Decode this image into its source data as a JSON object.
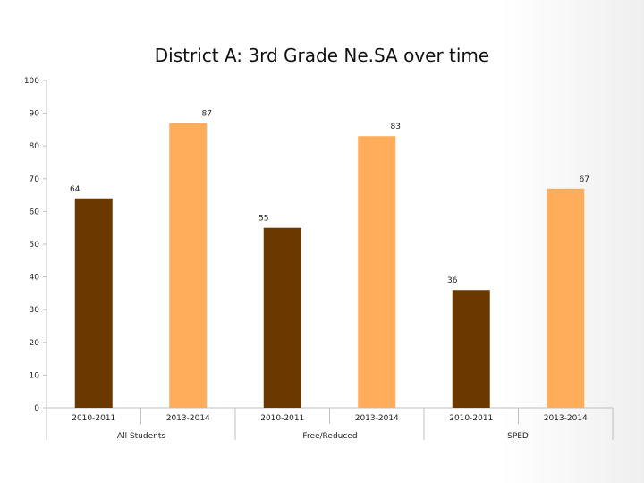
{
  "chart_data": {
    "type": "bar",
    "title": "District A: 3rd Grade Ne.SA over time",
    "ylim": [
      0,
      100
    ],
    "yticks": [
      0,
      10,
      20,
      30,
      40,
      50,
      60,
      70,
      80,
      90,
      100
    ],
    "grid": false,
    "groups": [
      "All Students",
      "Free/Reduced",
      "SPED"
    ],
    "categories": [
      "2010-2011",
      "2013-2014",
      "2010-2011",
      "2013-2014",
      "2010-2011",
      "2013-2014"
    ],
    "values": [
      64,
      87,
      55,
      83,
      36,
      67
    ],
    "colors": {
      "2010-2011": "#6b3800",
      "2013-2014": "#ffad5a"
    }
  }
}
